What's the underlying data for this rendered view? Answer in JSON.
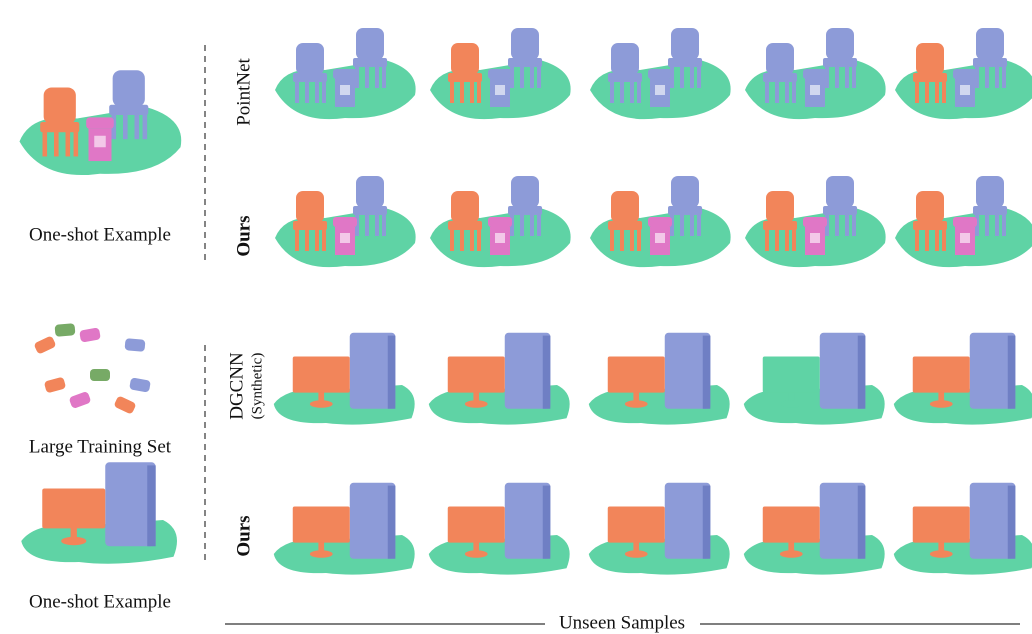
{
  "top": {
    "example_label": "One-shot Example",
    "rows": [
      {
        "label": "PointNet"
      },
      {
        "label": "Ours"
      }
    ]
  },
  "bottom": {
    "training_label": "Large Training Set",
    "example_label": "One-shot Example",
    "rows": [
      {
        "label": "DGCNN",
        "sublabel": "(Synthetic)"
      },
      {
        "label": "Ours"
      }
    ]
  },
  "footer": "Unseen Samples"
}
